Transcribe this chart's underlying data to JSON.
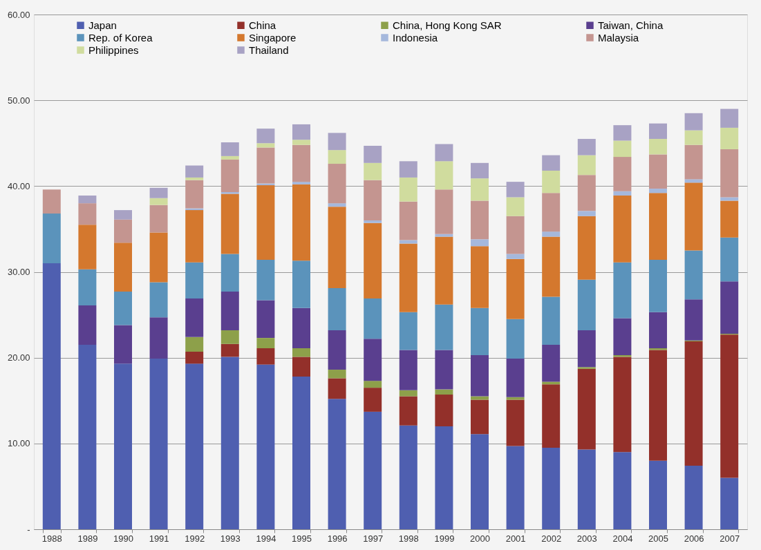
{
  "chart_data": {
    "type": "bar",
    "stacked": true,
    "categories": [
      "1988",
      "1989",
      "1990",
      "1991",
      "1992",
      "1993",
      "1994",
      "1995",
      "1996",
      "1997",
      "1998",
      "1999",
      "2000",
      "2001",
      "2002",
      "2003",
      "2004",
      "2005",
      "2006",
      "2007"
    ],
    "series": [
      {
        "name": "Japan",
        "color": "#4f5fb0",
        "values": [
          31.0,
          21.5,
          19.3,
          19.9,
          19.3,
          20.1,
          19.2,
          17.8,
          15.2,
          13.7,
          12.1,
          12.0,
          11.1,
          9.7,
          9.5,
          9.3,
          9.0,
          8.0,
          7.4,
          6.0
        ]
      },
      {
        "name": "China",
        "color": "#93302a",
        "values": [
          0,
          0,
          0,
          0,
          1.4,
          1.5,
          1.9,
          2.3,
          2.4,
          2.8,
          3.4,
          3.7,
          4.0,
          5.4,
          7.4,
          9.4,
          11.1,
          12.9,
          14.5,
          16.7
        ]
      },
      {
        "name": "China, Hong Kong SAR",
        "color": "#8da04a",
        "values": [
          0,
          0,
          0,
          0,
          1.7,
          1.6,
          1.2,
          1.0,
          1.0,
          0.8,
          0.7,
          0.6,
          0.4,
          0.3,
          0.3,
          0.2,
          0.2,
          0.2,
          0.1,
          0.1
        ]
      },
      {
        "name": "Taiwan, China",
        "color": "#5a3f8f",
        "values": [
          0,
          4.6,
          4.5,
          4.8,
          4.5,
          4.5,
          4.4,
          4.7,
          4.6,
          4.9,
          4.7,
          4.6,
          4.8,
          4.5,
          4.3,
          4.3,
          4.3,
          4.2,
          4.8,
          6.1
        ]
      },
      {
        "name": "Rep. of Korea",
        "color": "#5b93bb",
        "values": [
          5.8,
          4.2,
          3.9,
          4.1,
          4.2,
          4.4,
          4.7,
          5.5,
          4.9,
          4.7,
          4.4,
          5.3,
          5.5,
          4.6,
          5.6,
          5.9,
          6.5,
          6.1,
          5.7,
          5.1
        ]
      },
      {
        "name": "Singapore",
        "color": "#d4782e",
        "values": [
          0,
          5.2,
          5.7,
          5.8,
          6.1,
          7.0,
          8.7,
          8.9,
          9.5,
          8.8,
          8.0,
          7.9,
          7.2,
          7.0,
          7.0,
          7.4,
          7.8,
          7.8,
          7.9,
          4.3
        ]
      },
      {
        "name": "Indonesia",
        "color": "#a5b8dc",
        "values": [
          0,
          0,
          0,
          0,
          0.2,
          0.2,
          0.2,
          0.3,
          0.4,
          0.3,
          0.4,
          0.3,
          0.8,
          0.6,
          0.6,
          0.6,
          0.5,
          0.5,
          0.4,
          0.4
        ]
      },
      {
        "name": "Malaysia",
        "color": "#c49590",
        "values": [
          2.8,
          2.5,
          2.7,
          3.2,
          3.3,
          3.8,
          4.2,
          4.3,
          4.6,
          4.7,
          4.5,
          5.2,
          4.5,
          4.4,
          4.5,
          4.2,
          4.0,
          4.0,
          4.0,
          5.6
        ]
      },
      {
        "name": "Philippines",
        "color": "#d0dc9e",
        "values": [
          0,
          0,
          0,
          0.8,
          0.3,
          0.4,
          0.5,
          0.6,
          1.6,
          2.0,
          2.8,
          3.3,
          2.6,
          2.2,
          2.6,
          2.3,
          1.9,
          1.8,
          1.7,
          2.5
        ]
      },
      {
        "name": "Thailand",
        "color": "#a8a2c4",
        "values": [
          0,
          0.9,
          1.1,
          1.2,
          1.4,
          1.6,
          1.7,
          1.8,
          2.0,
          2.0,
          1.9,
          2.0,
          1.8,
          1.8,
          1.8,
          1.9,
          1.8,
          1.8,
          2.0,
          2.2
        ]
      }
    ],
    "ylim": [
      0,
      60
    ],
    "yticks": [
      {
        "value": 0,
        "label": "-"
      },
      {
        "value": 10,
        "label": "10.00"
      },
      {
        "value": 20,
        "label": "20.00"
      },
      {
        "value": 30,
        "label": "30.00"
      },
      {
        "value": 40,
        "label": "40.00"
      },
      {
        "value": 50,
        "label": "50.00"
      },
      {
        "value": 60,
        "label": "60.00"
      }
    ],
    "grid": "y",
    "legend": "top"
  }
}
